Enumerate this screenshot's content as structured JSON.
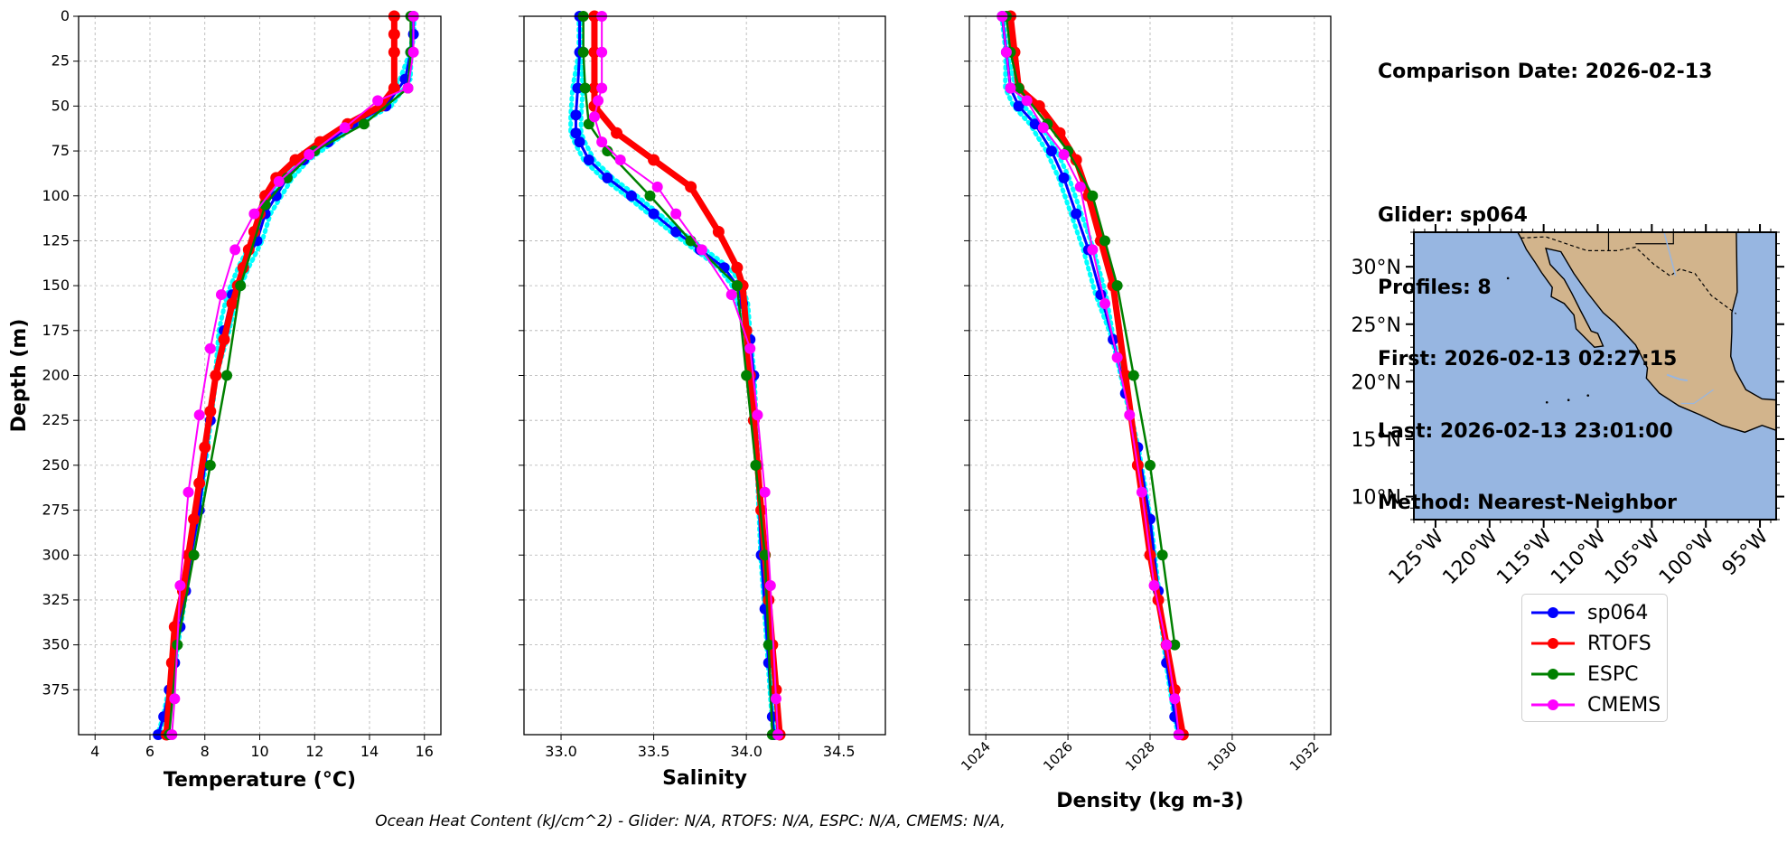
{
  "info": {
    "comparison_date": "Comparison Date: 2026-02-13",
    "glider": "Glider: sp064",
    "profiles": "Profiles: 8",
    "first": "First: 2026-02-13 02:27:15",
    "last": "Last: 2026-02-13 23:01:00",
    "method": "Method: Nearest-Neighbor"
  },
  "footer": "Ocean Heat Content (kJ/cm^2) - Glider: N/A,  RTOFS: N/A,  ESPC: N/A,  CMEMS: N/A,",
  "colors": {
    "sp064": "#0000ff",
    "RTOFS": "#ff0000",
    "ESPC": "#008000",
    "CMEMS": "#ff00ff",
    "profiles": "#00ffff",
    "ocean": "#97b6e1",
    "land": "#d2b48c"
  },
  "legend": [
    {
      "name": "sp064",
      "color": "#0000ff"
    },
    {
      "name": "RTOFS",
      "color": "#ff0000"
    },
    {
      "name": "ESPC",
      "color": "#008000"
    },
    {
      "name": "CMEMS",
      "color": "#ff00ff"
    }
  ],
  "chart_data": [
    {
      "type": "line",
      "xlabel": "Temperature (°C)",
      "ylabel": "Depth (m)",
      "xlim": [
        3.4,
        16.6
      ],
      "ylim": [
        400,
        0
      ],
      "xticks": [
        4,
        6,
        8,
        10,
        12,
        14,
        16
      ],
      "yticks": [
        0,
        25,
        50,
        75,
        100,
        125,
        150,
        175,
        200,
        225,
        250,
        275,
        300,
        325,
        350,
        375
      ],
      "grid": true,
      "series": [
        {
          "name": "sp064",
          "x": [
            15.6,
            15.6,
            15.5,
            15.3,
            14.6,
            13.4,
            12.5,
            11.6,
            11.0,
            10.6,
            10.2,
            9.9,
            9.4,
            9.0,
            8.7,
            8.4,
            8.2,
            8.0,
            7.8,
            7.5,
            7.3,
            7.1,
            6.9,
            6.7,
            6.5,
            6.3
          ],
          "y": [
            0,
            10,
            20,
            35,
            50,
            60,
            70,
            80,
            90,
            100,
            110,
            125,
            140,
            155,
            175,
            200,
            225,
            250,
            275,
            300,
            320,
            340,
            360,
            375,
            390,
            400
          ]
        },
        {
          "name": "RTOFS",
          "x": [
            14.9,
            14.9,
            14.9,
            14.9,
            14.4,
            13.2,
            12.2,
            11.3,
            10.6,
            10.2,
            10.0,
            9.8,
            9.6,
            9.4,
            9.2,
            9.0,
            8.7,
            8.4,
            8.2,
            8.0,
            7.8,
            7.6,
            7.4,
            7.2,
            6.9,
            6.8,
            6.6
          ],
          "y": [
            0,
            10,
            20,
            40,
            50,
            60,
            70,
            80,
            90,
            100,
            110,
            120,
            130,
            140,
            150,
            160,
            180,
            200,
            220,
            240,
            260,
            280,
            300,
            320,
            340,
            360,
            400
          ]
        },
        {
          "name": "ESPC",
          "x": [
            15.5,
            15.5,
            15.4,
            13.8,
            12.0,
            11.0,
            10.2,
            9.3,
            8.8,
            8.2,
            7.6,
            7.0,
            6.7
          ],
          "y": [
            0,
            20,
            40,
            60,
            75,
            90,
            105,
            150,
            200,
            250,
            300,
            350,
            400
          ]
        },
        {
          "name": "CMEMS",
          "x": [
            15.6,
            15.6,
            15.4,
            14.3,
            13.1,
            11.8,
            10.7,
            9.8,
            9.1,
            8.6,
            8.2,
            7.8,
            7.4,
            7.1,
            6.9,
            6.8
          ],
          "y": [
            0,
            20,
            40,
            47,
            62,
            77,
            92,
            110,
            130,
            155,
            185,
            222,
            265,
            317,
            380,
            400
          ]
        }
      ]
    },
    {
      "type": "line",
      "xlabel": "Salinity",
      "xlim": [
        32.8,
        34.75
      ],
      "ylim": [
        400,
        0
      ],
      "xticks": [
        33.0,
        33.5,
        34.0,
        34.5
      ],
      "grid": true,
      "series": [
        {
          "name": "sp064",
          "x": [
            33.1,
            33.1,
            33.09,
            33.08,
            33.08,
            33.1,
            33.15,
            33.25,
            33.38,
            33.5,
            33.62,
            33.75,
            33.88,
            33.95,
            33.98,
            34.02,
            34.04,
            34.06,
            34.08,
            34.1,
            34.12,
            34.14,
            34.15
          ],
          "y": [
            0,
            20,
            40,
            55,
            65,
            70,
            80,
            90,
            100,
            110,
            120,
            130,
            140,
            150,
            160,
            180,
            200,
            250,
            300,
            330,
            360,
            390,
            400
          ]
        },
        {
          "name": "RTOFS",
          "x": [
            33.18,
            33.18,
            33.18,
            33.18,
            33.3,
            33.5,
            33.7,
            33.85,
            33.95,
            33.98,
            34.0,
            34.02,
            34.04,
            34.06,
            34.08,
            34.1,
            34.12,
            34.14,
            34.16,
            34.18
          ],
          "y": [
            0,
            20,
            40,
            50,
            65,
            80,
            95,
            120,
            140,
            150,
            175,
            200,
            225,
            250,
            275,
            300,
            325,
            350,
            375,
            400
          ]
        },
        {
          "name": "ESPC",
          "x": [
            33.12,
            33.12,
            33.13,
            33.15,
            33.25,
            33.48,
            33.7,
            33.95,
            34.0,
            34.05,
            34.1,
            34.12,
            34.14
          ],
          "y": [
            0,
            20,
            40,
            60,
            75,
            100,
            125,
            150,
            200,
            250,
            300,
            350,
            400
          ]
        },
        {
          "name": "CMEMS",
          "x": [
            33.22,
            33.22,
            33.22,
            33.2,
            33.18,
            33.22,
            33.32,
            33.52,
            33.62,
            33.76,
            33.92,
            34.02,
            34.06,
            34.1,
            34.13,
            34.16,
            34.17
          ],
          "y": [
            0,
            20,
            40,
            47,
            56,
            70,
            80,
            95,
            110,
            130,
            155,
            185,
            222,
            265,
            317,
            380,
            400
          ]
        }
      ]
    },
    {
      "type": "line",
      "xlabel": "Density (kg m-3)",
      "xlim": [
        1023.6,
        1032.4
      ],
      "ylim": [
        400,
        0
      ],
      "xticks": [
        1024,
        1026,
        1028,
        1030,
        1032
      ],
      "grid": true,
      "series": [
        {
          "name": "sp064",
          "x": [
            1024.4,
            1024.5,
            1024.6,
            1024.8,
            1025.2,
            1025.6,
            1025.9,
            1026.2,
            1026.5,
            1026.8,
            1027.1,
            1027.4,
            1027.7,
            1028.0,
            1028.2,
            1028.4,
            1028.6,
            1028.7
          ],
          "y": [
            0,
            20,
            40,
            50,
            60,
            75,
            90,
            110,
            130,
            155,
            180,
            210,
            240,
            280,
            320,
            360,
            390,
            400
          ]
        },
        {
          "name": "RTOFS",
          "x": [
            1024.6,
            1024.7,
            1024.8,
            1025.3,
            1025.8,
            1026.2,
            1026.5,
            1026.8,
            1027.1,
            1027.4,
            1027.7,
            1028.0,
            1028.2,
            1028.4,
            1028.6,
            1028.8
          ],
          "y": [
            0,
            20,
            40,
            50,
            65,
            80,
            100,
            125,
            150,
            200,
            250,
            300,
            325,
            350,
            375,
            400
          ]
        },
        {
          "name": "ESPC",
          "x": [
            1024.5,
            1024.6,
            1024.8,
            1025.5,
            1026.0,
            1026.6,
            1026.9,
            1027.2,
            1027.6,
            1028.0,
            1028.3,
            1028.6
          ],
          "y": [
            0,
            20,
            40,
            60,
            75,
            100,
            125,
            150,
            200,
            250,
            300,
            350
          ]
        },
        {
          "name": "CMEMS",
          "x": [
            1024.4,
            1024.5,
            1024.6,
            1025.0,
            1025.4,
            1025.9,
            1026.3,
            1026.6,
            1026.9,
            1027.2,
            1027.5,
            1027.8,
            1028.1,
            1028.4,
            1028.6,
            1028.7
          ],
          "y": [
            0,
            20,
            40,
            47,
            62,
            77,
            95,
            130,
            160,
            190,
            222,
            265,
            317,
            350,
            380,
            400
          ]
        }
      ]
    },
    {
      "type": "map",
      "lon_ticks": [
        "125°W",
        "120°W",
        "115°W",
        "110°W",
        "105°W",
        "100°W",
        "95°W"
      ],
      "lat_ticks": [
        "30°N",
        "25°N",
        "20°N",
        "15°N",
        "10°N"
      ],
      "lon_range": [
        -127,
        -93.5
      ],
      "lat_range": [
        8,
        33
      ]
    }
  ]
}
